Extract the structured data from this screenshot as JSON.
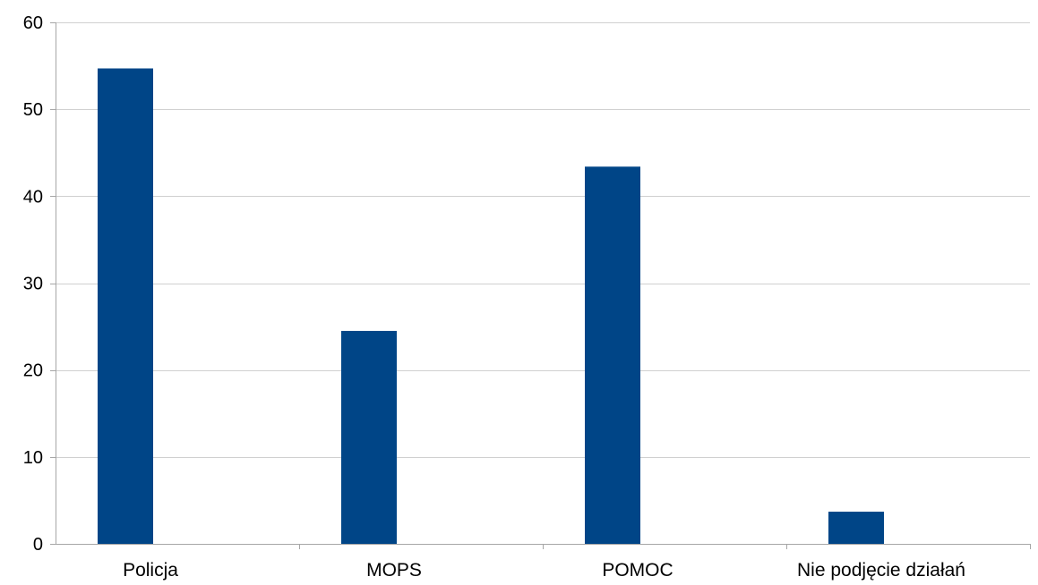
{
  "chart_data": {
    "type": "bar",
    "title": "",
    "xlabel": "",
    "ylabel": "",
    "categories": [
      "Policja",
      "MOPS",
      "POMOC",
      "Nie podjęcie działań"
    ],
    "series": [
      {
        "values": [
          54.7,
          24.5,
          43.4,
          3.7
        ],
        "color": "#004587"
      }
    ],
    "ylim": [
      0,
      60
    ],
    "yticks": [
      0,
      10,
      20,
      30,
      40,
      50,
      60
    ],
    "grid": true,
    "legend": "none"
  }
}
